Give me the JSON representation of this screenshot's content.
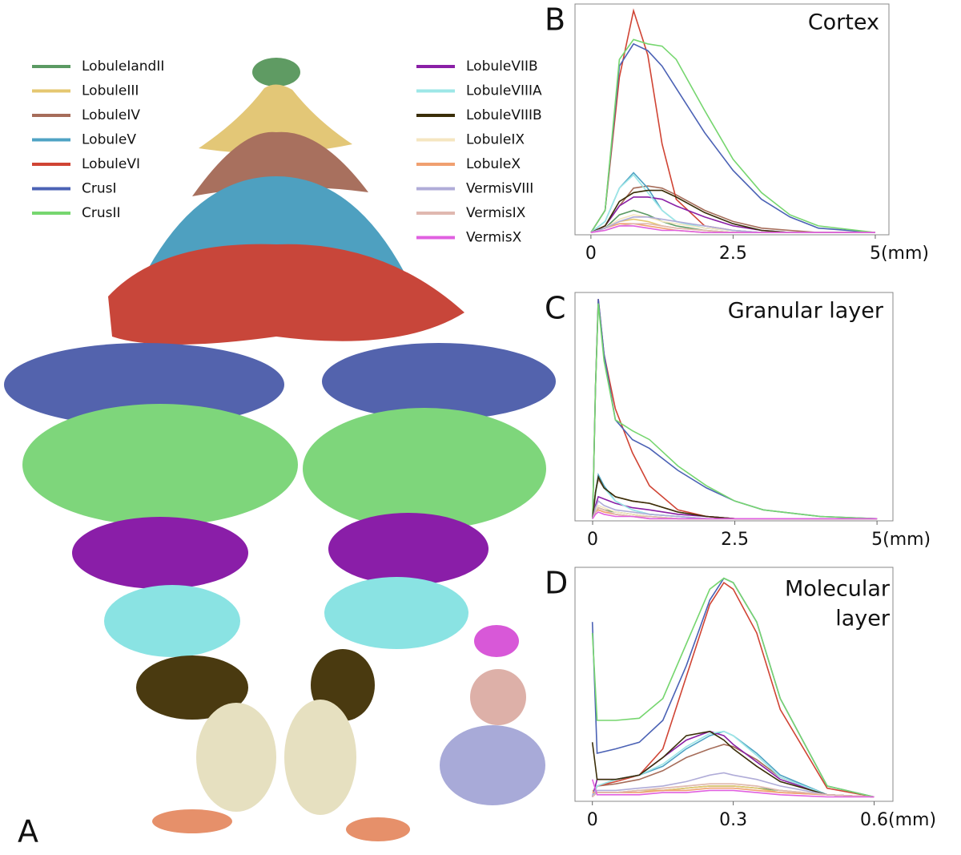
{
  "panel_label": "A",
  "chart_data": [
    {
      "type": "line",
      "panel_label": "B",
      "title": "Cortex",
      "xlabel": "(mm)",
      "x": [
        0,
        0.25,
        0.5,
        0.75,
        1,
        1.25,
        1.5,
        2,
        2.5,
        3,
        3.5,
        4,
        5
      ],
      "xlim": [
        -0.28,
        5.24
      ],
      "ylim": [
        -1,
        103
      ],
      "xticks": [
        0,
        2.5,
        5
      ],
      "series": [
        {
          "name": "LobuleIandII",
          "color": "#5b9a63",
          "values": [
            0,
            2,
            8,
            10,
            8,
            5,
            3,
            1,
            0,
            0,
            0,
            0,
            0
          ]
        },
        {
          "name": "LobuleIII",
          "color": "#e5c770",
          "values": [
            0,
            2,
            5,
            6,
            5,
            3,
            2,
            1,
            0,
            0,
            0,
            0,
            0
          ]
        },
        {
          "name": "LobuleIV",
          "color": "#a66d5a",
          "values": [
            0,
            3,
            12,
            20,
            21,
            20,
            17,
            10,
            5,
            2,
            1,
            0,
            0
          ]
        },
        {
          "name": "LobuleV",
          "color": "#4fa3c4",
          "values": [
            0,
            5,
            20,
            27,
            20,
            10,
            5,
            2,
            1,
            0,
            0,
            0,
            0
          ]
        },
        {
          "name": "LobuleVI",
          "color": "#d04434",
          "values": [
            0,
            10,
            70,
            100,
            80,
            40,
            15,
            3,
            1,
            0,
            0,
            0,
            0
          ]
        },
        {
          "name": "CrusI",
          "color": "#4b62b5",
          "values": [
            0,
            10,
            75,
            85,
            82,
            75,
            65,
            45,
            28,
            15,
            7,
            2,
            0
          ]
        },
        {
          "name": "CrusII",
          "color": "#76d66f",
          "values": [
            0,
            10,
            78,
            87,
            85,
            84,
            78,
            55,
            33,
            18,
            8,
            3,
            0
          ]
        },
        {
          "name": "LobuleVIIB",
          "color": "#8a1fa6",
          "values": [
            0,
            3,
            12,
            16,
            16,
            15,
            12,
            7,
            3,
            1,
            0,
            0,
            0
          ]
        },
        {
          "name": "LobuleVIIIA",
          "color": "#9de7e7",
          "values": [
            0,
            5,
            20,
            26,
            18,
            10,
            5,
            2,
            1,
            0,
            0,
            0,
            0
          ]
        },
        {
          "name": "LobuleVIIIB",
          "color": "#3a2e08",
          "values": [
            0,
            3,
            14,
            18,
            19,
            19,
            16,
            9,
            4,
            1,
            0,
            0,
            0
          ]
        },
        {
          "name": "LobuleIX",
          "color": "#f5e6c0",
          "values": [
            0,
            2,
            6,
            8,
            7,
            5,
            4,
            2,
            1,
            0,
            0,
            0,
            0
          ]
        },
        {
          "name": "LobuleX",
          "color": "#f0a070",
          "values": [
            0,
            2,
            4,
            4,
            3,
            2,
            1,
            0,
            0,
            0,
            0,
            0,
            0
          ]
        },
        {
          "name": "VermisVIII",
          "color": "#b0acd8",
          "values": [
            0,
            2,
            5,
            7,
            7,
            6,
            5,
            3,
            1,
            0,
            0,
            0,
            0
          ]
        },
        {
          "name": "VermisIX",
          "color": "#e0b8b0",
          "values": [
            0,
            1,
            3,
            4,
            4,
            3,
            2,
            1,
            0,
            0,
            0,
            0,
            0
          ]
        },
        {
          "name": "VermisX",
          "color": "#e060e0",
          "values": [
            0,
            1,
            3,
            3,
            2,
            1,
            1,
            0,
            0,
            0,
            0,
            0,
            0
          ]
        }
      ]
    },
    {
      "type": "line",
      "panel_label": "C",
      "title": "Granular layer",
      "xlabel": "(mm)",
      "x": [
        0,
        0.05,
        0.1,
        0.2,
        0.4,
        0.7,
        1,
        1.5,
        2,
        2.5,
        3,
        4,
        5
      ],
      "xlim": [
        -0.31,
        5.28
      ],
      "ylim": [
        -1,
        103
      ],
      "xticks": [
        0,
        2.5,
        5
      ],
      "series": [
        {
          "color": "#5b9a63",
          "values": [
            0,
            3,
            5,
            4,
            3,
            2,
            1,
            0,
            0,
            0,
            0,
            0,
            0
          ]
        },
        {
          "color": "#e5c770",
          "values": [
            0,
            3,
            4,
            3,
            2,
            1,
            1,
            0,
            0,
            0,
            0,
            0,
            0
          ]
        },
        {
          "color": "#a66d5a",
          "values": [
            0,
            12,
            18,
            14,
            10,
            8,
            7,
            3,
            1,
            0,
            0,
            0,
            0
          ]
        },
        {
          "color": "#4fa3c4",
          "values": [
            0,
            12,
            20,
            15,
            8,
            4,
            2,
            1,
            0,
            0,
            0,
            0,
            0
          ]
        },
        {
          "color": "#d04434",
          "values": [
            0,
            60,
            100,
            75,
            50,
            30,
            15,
            4,
            1,
            0,
            0,
            0,
            0
          ]
        },
        {
          "color": "#4b62b5",
          "values": [
            0,
            60,
            100,
            75,
            45,
            36,
            32,
            22,
            14,
            8,
            4,
            1,
            0
          ]
        },
        {
          "color": "#76d66f",
          "values": [
            0,
            60,
            98,
            72,
            45,
            40,
            36,
            24,
            15,
            8,
            4,
            1,
            0
          ]
        },
        {
          "color": "#8a1fa6",
          "values": [
            0,
            6,
            10,
            9,
            7,
            5,
            4,
            2,
            1,
            0,
            0,
            0,
            0
          ]
        },
        {
          "color": "#9de7e7",
          "values": [
            0,
            11,
            19,
            14,
            8,
            4,
            2,
            1,
            0,
            0,
            0,
            0,
            0
          ]
        },
        {
          "color": "#3a2e08",
          "values": [
            0,
            12,
            19,
            14,
            10,
            8,
            7,
            3,
            1,
            0,
            0,
            0,
            0
          ]
        },
        {
          "color": "#f5e6c0",
          "values": [
            0,
            4,
            6,
            5,
            3,
            2,
            1,
            0,
            0,
            0,
            0,
            0,
            0
          ]
        },
        {
          "color": "#f0a070",
          "values": [
            0,
            3,
            4,
            3,
            2,
            1,
            0,
            0,
            0,
            0,
            0,
            0,
            0
          ]
        },
        {
          "color": "#b0acd8",
          "values": [
            0,
            5,
            8,
            6,
            4,
            3,
            2,
            1,
            0,
            0,
            0,
            0,
            0
          ]
        },
        {
          "color": "#e0b8b0",
          "values": [
            0,
            3,
            5,
            4,
            2,
            1,
            1,
            0,
            0,
            0,
            0,
            0,
            0
          ]
        },
        {
          "color": "#e060e0",
          "values": [
            0,
            2,
            3,
            2,
            1,
            1,
            0,
            0,
            0,
            0,
            0,
            0,
            0
          ]
        }
      ]
    },
    {
      "type": "line",
      "panel_label": "D",
      "title_lines": [
        "Molecular",
        "layer"
      ],
      "xlabel": "(mm)",
      "x": [
        0,
        0.01,
        0.05,
        0.1,
        0.15,
        0.2,
        0.25,
        0.28,
        0.3,
        0.35,
        0.4,
        0.5,
        0.6
      ],
      "xlim": [
        -0.037,
        0.64
      ],
      "ylim": [
        -2,
        105
      ],
      "xticks": [
        0,
        0.3,
        0.6
      ],
      "series": [
        {
          "color": "#5b9a63",
          "values": [
            3,
            2,
            2,
            3,
            3,
            4,
            5,
            5,
            5,
            4,
            3,
            1,
            0
          ]
        },
        {
          "color": "#e5c770",
          "values": [
            3,
            2,
            2,
            3,
            3,
            4,
            5,
            5,
            5,
            4,
            2,
            1,
            0
          ]
        },
        {
          "color": "#a66d5a",
          "values": [
            0,
            5,
            6,
            8,
            12,
            18,
            22,
            24,
            23,
            17,
            9,
            1,
            0
          ]
        },
        {
          "color": "#4fa3c4",
          "values": [
            0,
            5,
            8,
            10,
            14,
            22,
            28,
            30,
            28,
            20,
            10,
            1,
            0
          ]
        },
        {
          "color": "#d04434",
          "values": [
            0,
            5,
            7,
            10,
            22,
            55,
            88,
            98,
            95,
            75,
            40,
            4,
            0
          ]
        },
        {
          "color": "#4b62b5",
          "values": [
            80,
            20,
            22,
            25,
            35,
            60,
            90,
            100,
            98,
            80,
            45,
            5,
            0
          ]
        },
        {
          "color": "#76d66f",
          "values": [
            75,
            35,
            35,
            36,
            45,
            70,
            95,
            100,
            98,
            80,
            45,
            5,
            0
          ]
        },
        {
          "color": "#8a1fa6",
          "values": [
            0,
            8,
            8,
            10,
            18,
            26,
            30,
            28,
            24,
            16,
            8,
            1,
            0
          ]
        },
        {
          "color": "#9de7e7",
          "values": [
            0,
            5,
            8,
            10,
            15,
            23,
            29,
            30,
            28,
            19,
            9,
            1,
            0
          ]
        },
        {
          "color": "#3a2e08",
          "values": [
            25,
            8,
            8,
            10,
            18,
            28,
            30,
            26,
            22,
            14,
            7,
            1,
            0
          ]
        },
        {
          "color": "#f5e6c0",
          "values": [
            2,
            2,
            2,
            3,
            4,
            5,
            6,
            6,
            6,
            5,
            3,
            1,
            0
          ]
        },
        {
          "color": "#f0a070",
          "values": [
            2,
            2,
            2,
            2,
            3,
            3,
            4,
            4,
            4,
            3,
            2,
            1,
            0
          ]
        },
        {
          "color": "#b0acd8",
          "values": [
            0,
            3,
            3,
            4,
            5,
            7,
            10,
            11,
            10,
            8,
            5,
            1,
            0
          ]
        },
        {
          "color": "#e0b8b0",
          "values": [
            0,
            2,
            2,
            3,
            4,
            5,
            6,
            6,
            6,
            5,
            3,
            1,
            0
          ]
        },
        {
          "color": "#e060e0",
          "values": [
            8,
            1,
            1,
            1,
            2,
            2,
            3,
            3,
            3,
            2,
            1,
            0,
            0
          ]
        }
      ]
    }
  ]
}
